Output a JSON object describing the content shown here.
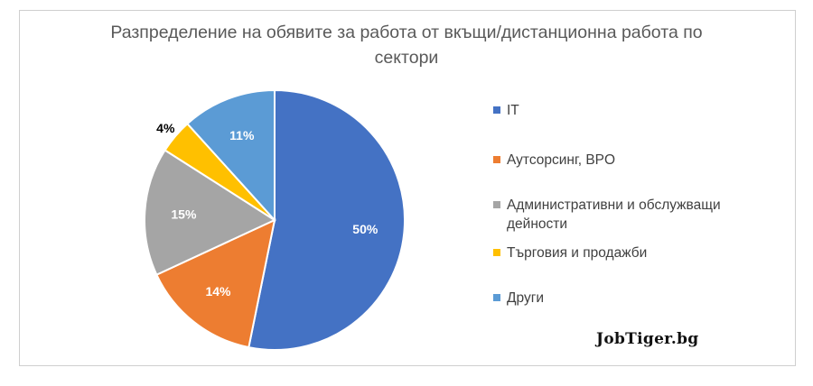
{
  "chart_data": {
    "type": "pie",
    "title": "Разпределение на обявите за работа от вкъщи/дистанционна работа по сектори",
    "title_lines": [
      "Разпределение на обявите за работа от вкъщи/дистанционна работа по",
      "сектори"
    ],
    "slices": [
      {
        "label": "IT",
        "value": 50,
        "data_label": "50%",
        "color": "#4472C4",
        "label_color": "#ffffff"
      },
      {
        "label": "Аутсорсинг, BPO",
        "value": 14,
        "data_label": "14%",
        "color": "#ED7D31",
        "label_color": "#ffffff"
      },
      {
        "label": "Административни и обслужващи дейности",
        "value": 15,
        "data_label": "15%",
        "color": "#A5A5A5",
        "label_color": "#ffffff"
      },
      {
        "label": "Търговия и продажби",
        "value": 4,
        "data_label": "4%",
        "color": "#FFC000",
        "label_color": "#000000"
      },
      {
        "label": "Други",
        "value": 11,
        "data_label": "11%",
        "color": "#5B9BD5",
        "label_color": "#ffffff"
      }
    ],
    "legend_position": "right"
  },
  "legend_lines": [
    [
      "IT"
    ],
    [
      "Аутсорсинг, BPO"
    ],
    [
      "Административни и обслужващи",
      "дейности"
    ],
    [
      "Търговия и продажби"
    ],
    [
      "Други"
    ]
  ],
  "watermark": "JobTiger.bg"
}
